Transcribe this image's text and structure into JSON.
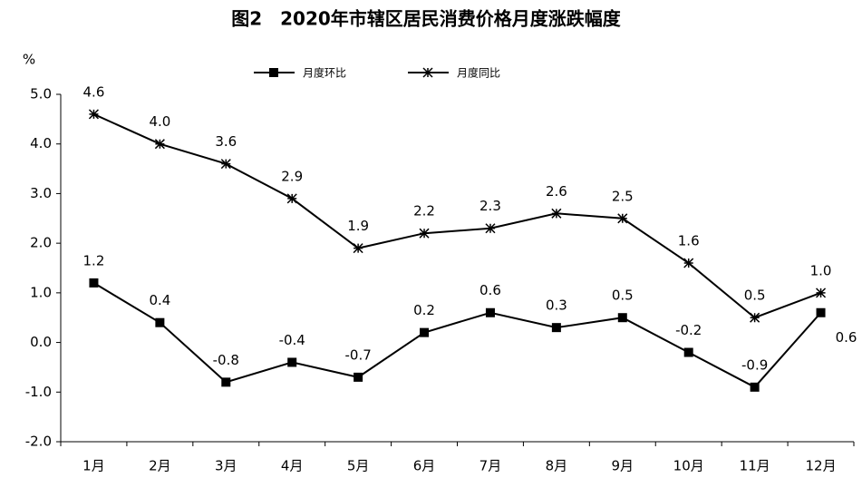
{
  "chart_data": {
    "type": "line",
    "title": "图2　2020年市辖区居民消费价格月度涨跌幅度",
    "y_label": "%",
    "categories": [
      "1月",
      "2月",
      "3月",
      "4月",
      "5月",
      "6月",
      "7月",
      "8月",
      "9月",
      "10月",
      "11月",
      "12月"
    ],
    "series": [
      {
        "name": "月度环比",
        "color": "#000000",
        "marker": "square",
        "values": [
          1.2,
          0.4,
          -0.8,
          -0.4,
          -0.7,
          0.2,
          0.6,
          0.3,
          0.5,
          -0.2,
          -0.9,
          0.6
        ],
        "value_labels": [
          "1.2",
          "0.4",
          "-0.8",
          "-0.4",
          "-0.7",
          "0.2",
          "0.6",
          "0.3",
          "0.5",
          "-0.2",
          "-0.9",
          "0.6"
        ]
      },
      {
        "name": "月度同比",
        "color": "#000000",
        "marker": "star",
        "values": [
          4.6,
          4.0,
          3.6,
          2.9,
          1.9,
          2.2,
          2.3,
          2.6,
          2.5,
          1.6,
          0.5,
          1.0
        ],
        "value_labels": [
          "4.6",
          "4.0",
          "3.6",
          "2.9",
          "1.9",
          "2.2",
          "2.3",
          "2.6",
          "2.5",
          "1.6",
          "0.5",
          "1.0"
        ]
      }
    ],
    "ylim": [
      -2,
      5
    ],
    "yticks": [
      {
        "value": -2,
        "label": "-2.0"
      },
      {
        "value": -1,
        "label": "-1.0"
      },
      {
        "value": 0,
        "label": "0.0"
      },
      {
        "value": 1,
        "label": "1.0"
      },
      {
        "value": 2,
        "label": "2.0"
      },
      {
        "value": 3,
        "label": "3.0"
      },
      {
        "value": 4,
        "label": "4.0"
      },
      {
        "value": 5,
        "label": "5.0"
      }
    ],
    "grid": false
  }
}
